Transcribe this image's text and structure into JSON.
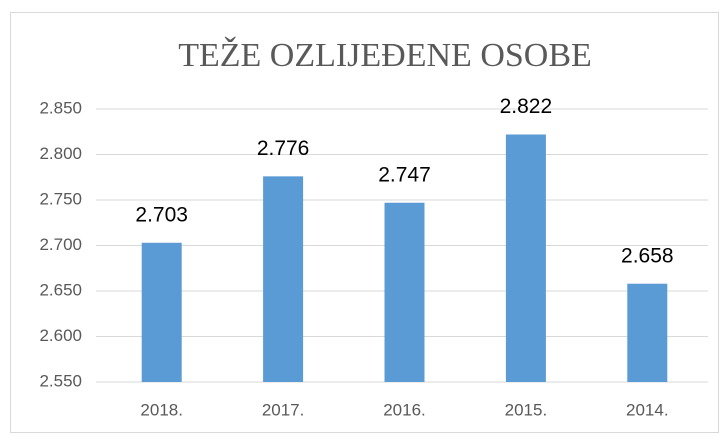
{
  "chart_data": {
    "type": "bar",
    "title": "TEŽE OZLIJEĐENE OSOBE",
    "categories": [
      "2018.",
      "2017.",
      "2016.",
      "2015.",
      "2014."
    ],
    "values": [
      2703,
      2776,
      2747,
      2822,
      2658
    ],
    "value_labels": [
      "2.703",
      "2.776",
      "2.747",
      "2.822",
      "2.658"
    ],
    "color": "#5b9bd5",
    "ylim": [
      2550,
      2850
    ],
    "yticks": [
      {
        "value": 2550,
        "label": "2.550"
      },
      {
        "value": 2600,
        "label": "2.600"
      },
      {
        "value": 2650,
        "label": "2.650"
      },
      {
        "value": 2700,
        "label": "2.700"
      },
      {
        "value": 2750,
        "label": "2.750"
      },
      {
        "value": 2800,
        "label": "2.800"
      },
      {
        "value": 2850,
        "label": "2.850"
      }
    ],
    "grid": true
  }
}
